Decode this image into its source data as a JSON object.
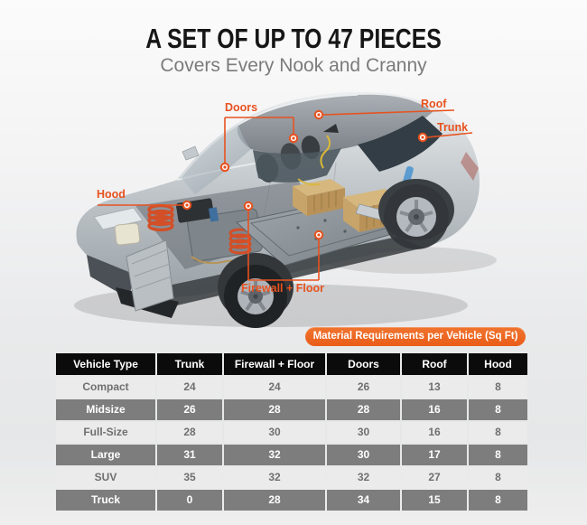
{
  "header": {
    "title": "A SET OF UP TO 47 PIECES",
    "subtitle": "Covers Every Nook and Cranny"
  },
  "callouts": [
    {
      "id": "doors",
      "label": "Doors"
    },
    {
      "id": "roof",
      "label": "Roof"
    },
    {
      "id": "trunk",
      "label": "Trunk"
    },
    {
      "id": "hood",
      "label": "Hood"
    },
    {
      "id": "firewall_floor",
      "label": "Firewall + Floor"
    }
  ],
  "badge": {
    "label": "Material Requirements per Vehicle (Sq Ft)"
  },
  "table": {
    "columns": [
      "Vehicle Type",
      "Trunk",
      "Firewall + Floor",
      "Doors",
      "Roof",
      "Hood"
    ],
    "rows": [
      {
        "vehicle": "Compact",
        "values": [
          24,
          24,
          26,
          13,
          8
        ]
      },
      {
        "vehicle": "Midsize",
        "values": [
          26,
          28,
          28,
          16,
          8
        ]
      },
      {
        "vehicle": "Full-Size",
        "values": [
          28,
          30,
          30,
          16,
          8
        ]
      },
      {
        "vehicle": "Large",
        "values": [
          31,
          32,
          30,
          17,
          8
        ]
      },
      {
        "vehicle": "SUV",
        "values": [
          35,
          32,
          32,
          27,
          8
        ]
      },
      {
        "vehicle": "Truck",
        "values": [
          0,
          28,
          34,
          15,
          8
        ]
      }
    ]
  },
  "colors": {
    "accent_orange": "#e7521f",
    "badge_orange": "#ed6623",
    "table_header_bg": "#0b0b0b",
    "row_dark_bg": "#7d7d7d",
    "row_light_bg": "#ebebeb",
    "row_light_text": "#6f6f6f",
    "title_text": "#161616",
    "subtitle_text": "#7b7b7b"
  }
}
